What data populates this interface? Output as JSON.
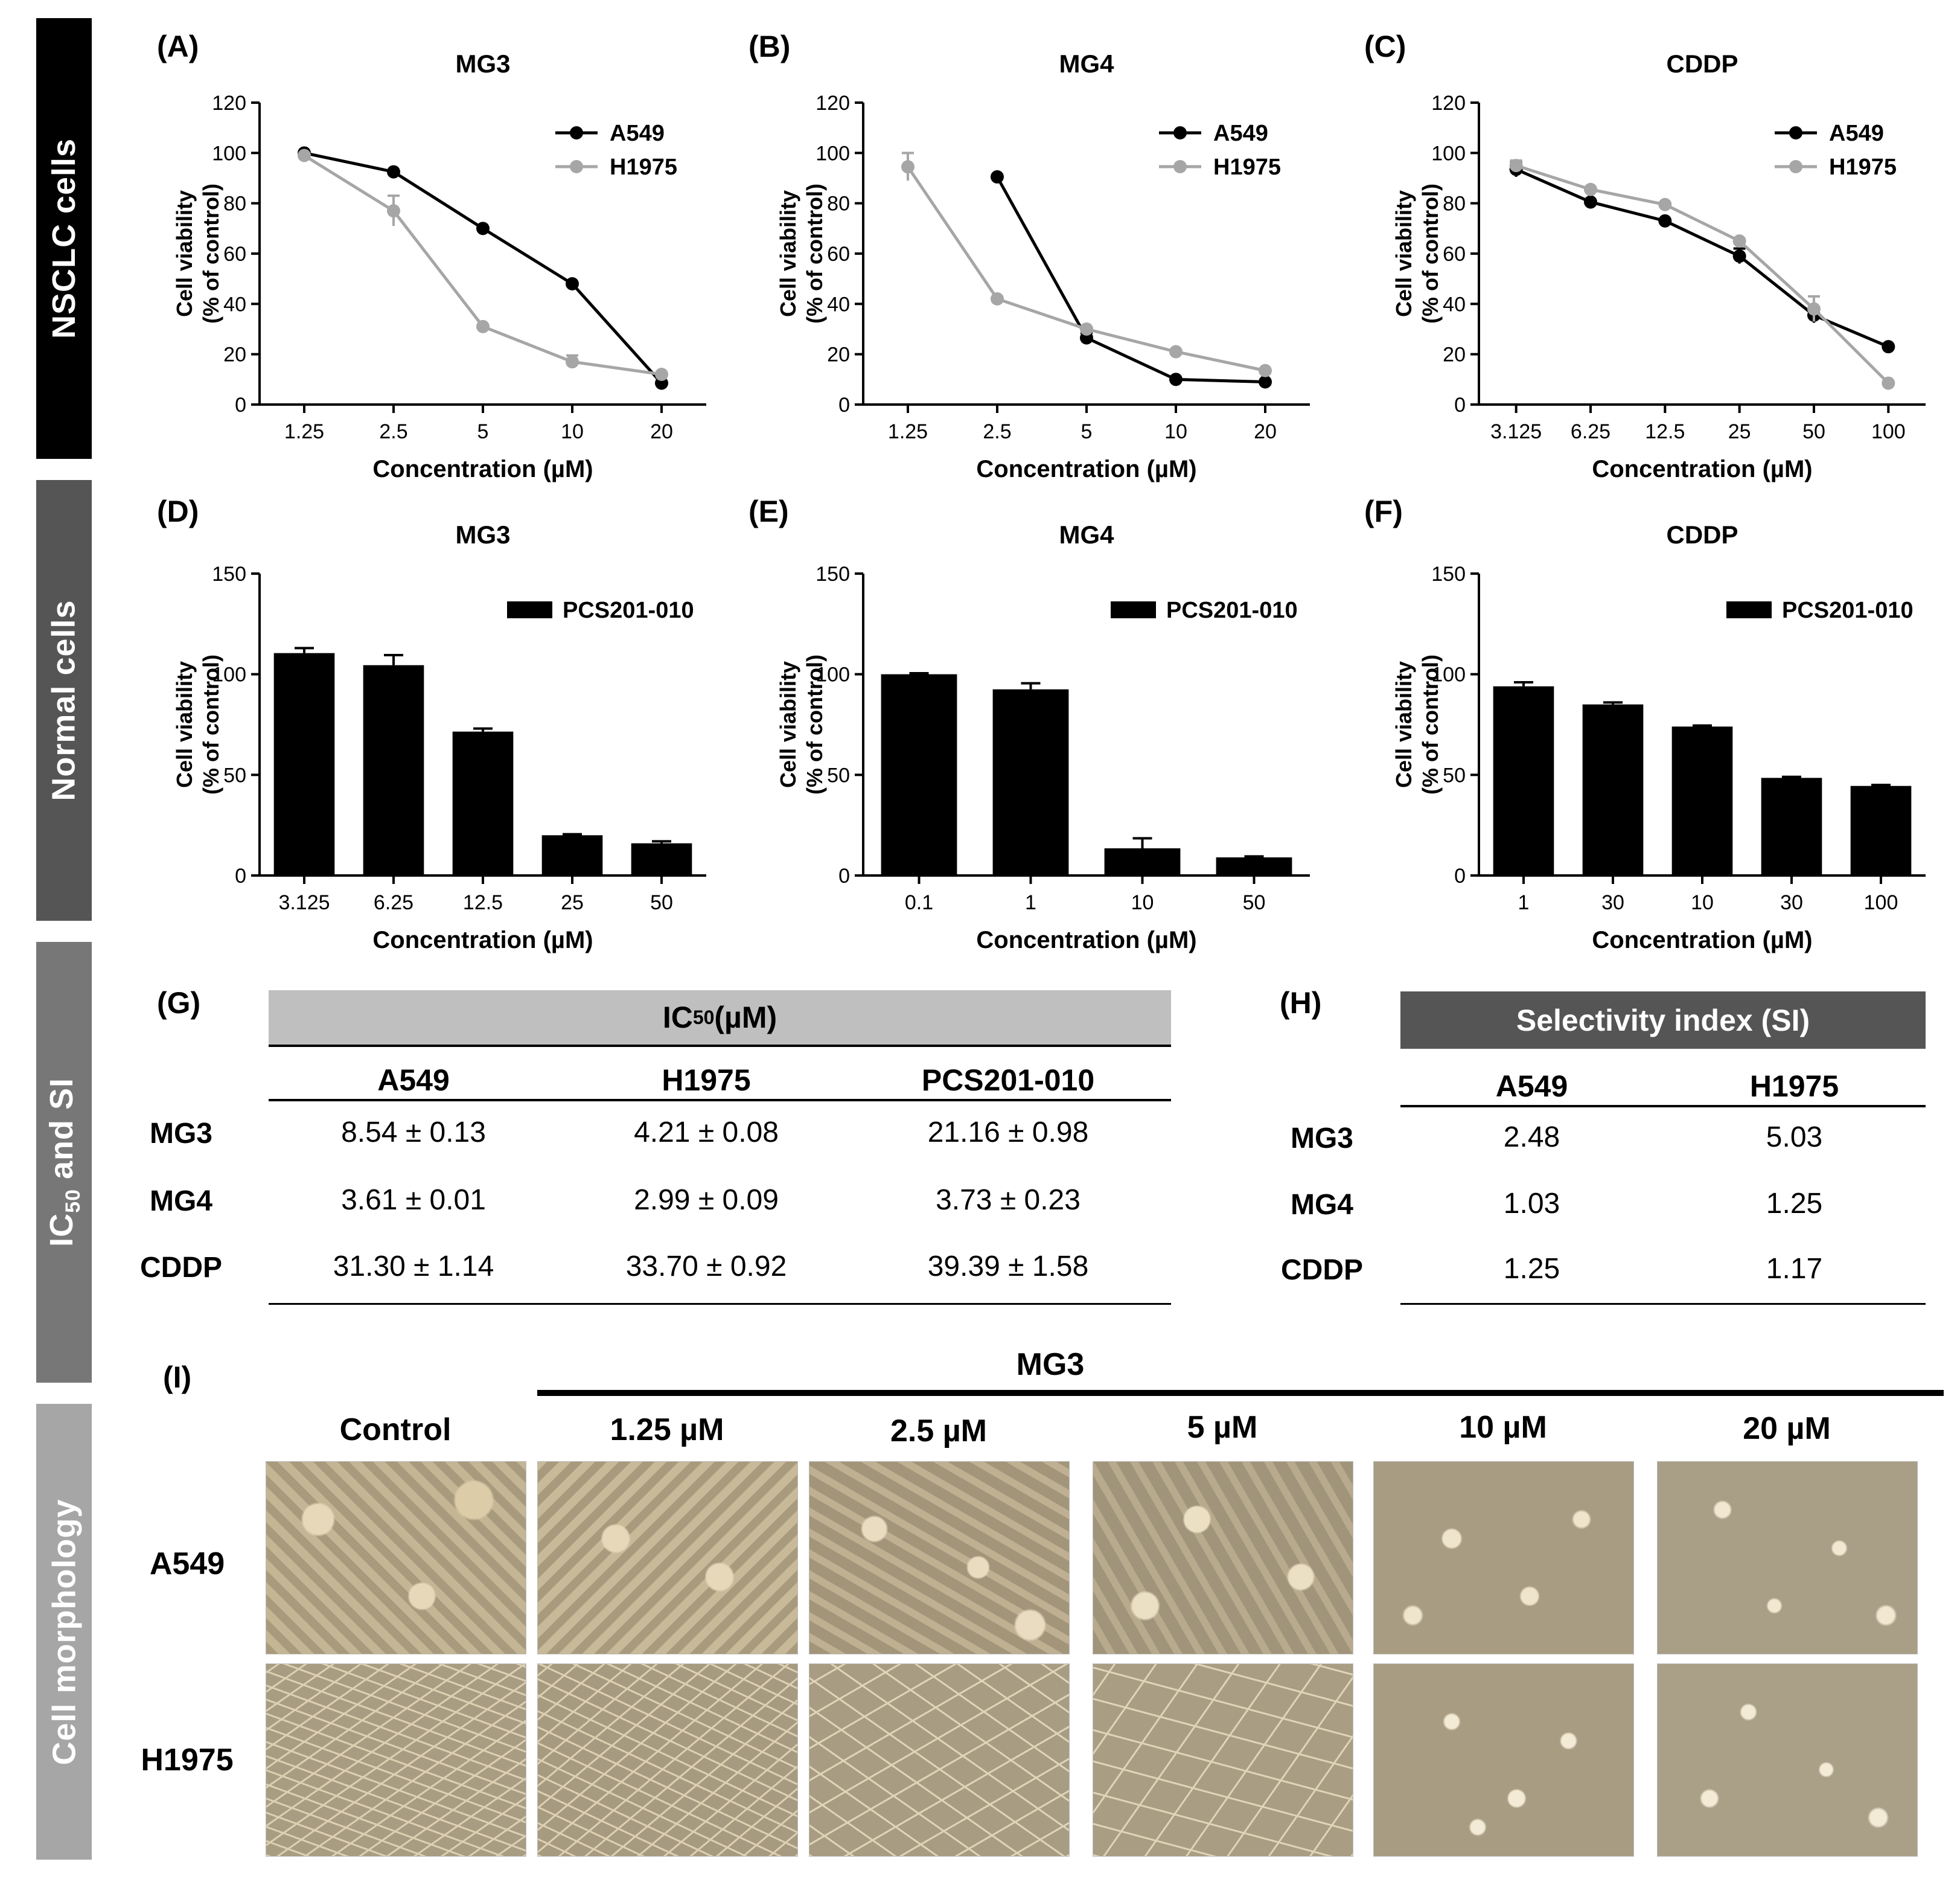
{
  "sidebars": [
    {
      "label": "NSCLC cells",
      "color": "#000000"
    },
    {
      "label": "Normal cells",
      "color": "#555555"
    },
    {
      "label": "IC",
      "sub": "50",
      "rest": " and SI",
      "color": "#777777"
    },
    {
      "label": "Cell morphology",
      "color": "#a6a6a6"
    }
  ],
  "chart_data": [
    {
      "panel": "(A)",
      "type": "line",
      "title": "MG3",
      "categories": [
        "1.25",
        "2.5",
        "5",
        "10",
        "20"
      ],
      "series": [
        {
          "name": "A549",
          "color": "#000000",
          "values": [
            100,
            92.5,
            70,
            48,
            8.5
          ],
          "err": [
            0,
            0,
            0,
            0,
            0
          ]
        },
        {
          "name": "H1975",
          "color": "#a6a6a6",
          "values": [
            99,
            77,
            31,
            17,
            12
          ],
          "err": [
            0,
            6,
            0,
            2.5,
            0
          ]
        }
      ],
      "yticks": [
        "0",
        "20",
        "40",
        "60",
        "80",
        "100",
        "120"
      ],
      "ylim": [
        0,
        120
      ],
      "xlabel": "Concentration (µM)",
      "ylabel1": "Cell viability",
      "ylabel2": "(% of control)",
      "legend": "top-right"
    },
    {
      "panel": "(B)",
      "type": "line",
      "title": "MG4",
      "categories": [
        "1.25",
        "2.5",
        "5",
        "10",
        "20"
      ],
      "series": [
        {
          "name": "A549",
          "color": "#000000",
          "values": [
            null,
            90.5,
            26.5,
            10,
            9
          ],
          "err": [
            0,
            0,
            2,
            0,
            0
          ]
        },
        {
          "name": "H1975",
          "color": "#a6a6a6",
          "values": [
            94.5,
            42,
            30,
            21,
            13.5
          ],
          "err": [
            5.5,
            0,
            0,
            0,
            0
          ]
        }
      ],
      "yticks": [
        "0",
        "20",
        "40",
        "60",
        "80",
        "100",
        "120"
      ],
      "ylim": [
        0,
        120
      ],
      "xlabel": "Concentration (µM)",
      "ylabel1": "Cell viability",
      "ylabel2": "(% of control)",
      "legend": "top-right"
    },
    {
      "panel": "(C)",
      "type": "line",
      "title": "CDDP",
      "categories": [
        "3.125",
        "6.25",
        "12.5",
        "25",
        "50",
        "100"
      ],
      "series": [
        {
          "name": "A549",
          "color": "#000000",
          "values": [
            93.5,
            80.5,
            73,
            59,
            35.5,
            23
          ],
          "err": [
            3,
            0,
            0,
            3,
            3,
            0
          ]
        },
        {
          "name": "H1975",
          "color": "#a6a6a6",
          "values": [
            95,
            85.5,
            79.5,
            65,
            38,
            8.5
          ],
          "err": [
            2,
            0,
            0,
            0,
            5,
            0
          ]
        }
      ],
      "yticks": [
        "0",
        "20",
        "40",
        "60",
        "80",
        "100",
        "120"
      ],
      "ylim": [
        0,
        120
      ],
      "xlabel": "Concentration (µM)",
      "ylabel1": "Cell viability",
      "ylabel2": "(% of control)",
      "legend": "top-right"
    },
    {
      "panel": "(D)",
      "type": "bar",
      "title": "MG3",
      "categories": [
        "3.125",
        "6.25",
        "12.5",
        "25",
        "50"
      ],
      "series": [
        {
          "name": "PCS201-010",
          "color": "#000000",
          "values": [
            110.5,
            104.5,
            71.5,
            20,
            16
          ],
          "err": [
            2.5,
            5,
            1.5,
            0.5,
            1
          ]
        }
      ],
      "yticks": [
        "0",
        "50",
        "100",
        "150"
      ],
      "ylim": [
        0,
        150
      ],
      "xlabel": "Concentration (µM)",
      "ylabel1": "Cell viability",
      "ylabel2": "(% of control)",
      "legend": "top-right"
    },
    {
      "panel": "(E)",
      "type": "bar",
      "title": "MG4",
      "categories": [
        "0.1",
        "1",
        "10",
        "50"
      ],
      "series": [
        {
          "name": "PCS201-010",
          "color": "#000000",
          "values": [
            100,
            92.5,
            13.5,
            9
          ],
          "err": [
            0.5,
            3,
            5,
            0.5
          ]
        }
      ],
      "yticks": [
        "0",
        "50",
        "100",
        "150"
      ],
      "ylim": [
        0,
        150
      ],
      "xlabel": "Concentration (µM)",
      "ylabel1": "Cell viability",
      "ylabel2": "(% of control)",
      "legend": "top-right"
    },
    {
      "panel": "(F)",
      "type": "bar",
      "title": "CDDP",
      "categories": [
        "1",
        "30",
        "10",
        "30",
        "100"
      ],
      "series": [
        {
          "name": "PCS201-010",
          "color": "#000000",
          "values": [
            94,
            85,
            74,
            48.5,
            44.5
          ],
          "err": [
            2,
            1,
            0.5,
            0.5,
            0.5
          ]
        }
      ],
      "yticks": [
        "0",
        "50",
        "100",
        "150"
      ],
      "ylim": [
        0,
        150
      ],
      "xlabel": "Concentration (µM)",
      "ylabel1": "Cell viability",
      "ylabel2": "(% of control)",
      "legend": "top-right"
    }
  ],
  "ic50_table": {
    "panel": "(G)",
    "title": "IC",
    "title_sub": "50",
    "title_unit": " (µM)",
    "columns": [
      "A549",
      "H1975",
      "PCS201-010"
    ],
    "rows": [
      {
        "label": "MG3",
        "values": [
          "8.54 ± 0.13",
          "4.21 ± 0.08",
          "21.16 ± 0.98"
        ]
      },
      {
        "label": "MG4",
        "values": [
          "3.61 ± 0.01",
          "2.99 ± 0.09",
          "3.73 ± 0.23"
        ]
      },
      {
        "label": "CDDP",
        "values": [
          "31.30 ± 1.14",
          "33.70 ± 0.92",
          "39.39 ± 1.58"
        ]
      }
    ]
  },
  "si_table": {
    "panel": "(H)",
    "title": "Selectivity index (SI)",
    "columns": [
      "A549",
      "H1975"
    ],
    "rows": [
      {
        "label": "MG3",
        "values": [
          "2.48",
          "5.03"
        ]
      },
      {
        "label": "MG4",
        "values": [
          "1.03",
          "1.25"
        ]
      },
      {
        "label": "CDDP",
        "values": [
          "1.25",
          "1.17"
        ]
      }
    ]
  },
  "morphology": {
    "panel": "(I)",
    "treatment": "MG3",
    "columns": [
      "Control",
      "1.25 µM",
      "2.5 µM",
      "5 µM",
      "10 µM",
      "20 µM"
    ],
    "rows": [
      "A549",
      "H1975"
    ]
  }
}
